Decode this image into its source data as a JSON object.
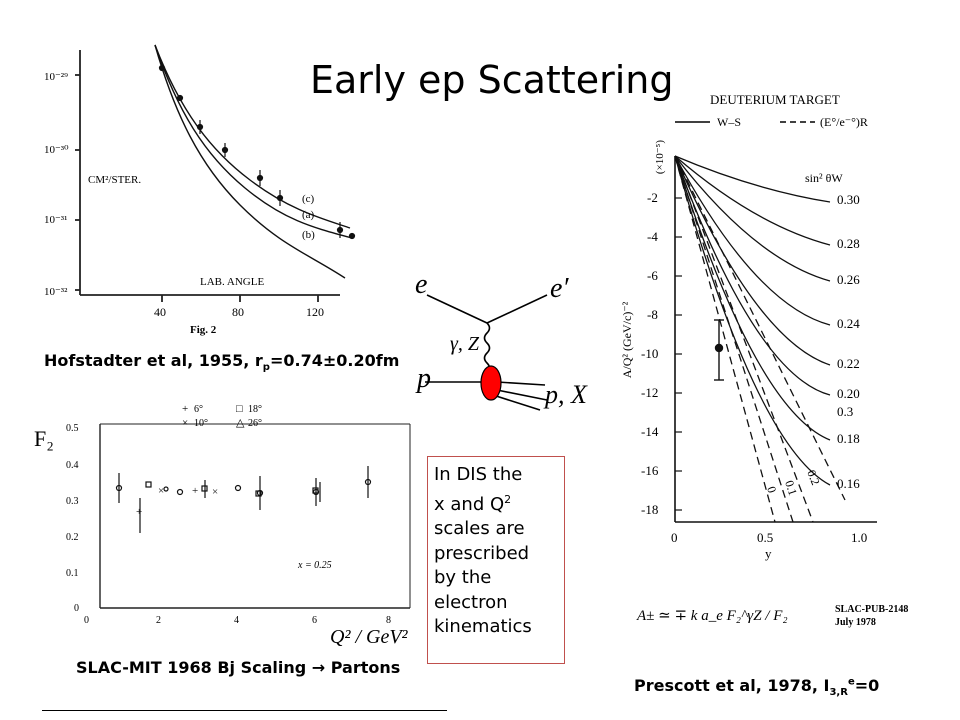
{
  "slide": {
    "title": "Early ep Scattering"
  },
  "hofstadter": {
    "y_ticks": [
      "10⁻²⁹",
      "10⁻³⁰",
      "10⁻³¹",
      "10⁻³²"
    ],
    "x_ticks": [
      "40",
      "80",
      "120"
    ],
    "y_label": "CM²/STER.",
    "x_label": "LAB. ANGLE",
    "curve_labels": [
      "(c)",
      "(a)",
      "(b)"
    ],
    "fig_label": "Fig. 2",
    "caption_prefix": "Hofstadter et al, 1955, r",
    "caption_sub": "p",
    "caption_suffix": "=0.74±0.20fm"
  },
  "feynman": {
    "e_in": "e",
    "e_out": "e′",
    "boson": "γ, Z",
    "p_in": "p",
    "p_out": "p, X"
  },
  "slac_mit": {
    "y_label": "F₂",
    "y_ticks": [
      "0.5",
      "0.4",
      "0.3",
      "0.2",
      "0.1",
      "0"
    ],
    "x_ticks": [
      "0",
      "2",
      "4",
      "6",
      "8"
    ],
    "legend": [
      {
        "symbol": "+",
        "label": "6°"
      },
      {
        "symbol": "□",
        "label": "18°"
      },
      {
        "symbol": "×",
        "label": "10°"
      },
      {
        "symbol": "△",
        "label": "26°"
      }
    ],
    "x_note": "x = 0.25",
    "x_axis_label": "Q² / GeV²",
    "caption": "SLAC-MIT 1968  Bj Scaling → Partons"
  },
  "dis_note": {
    "line1": "In DIS the",
    "line2a": "x and Q",
    "line2b": "2",
    "line3": "scales are",
    "line4": "prescribed",
    "line5": "by the",
    "line6": "electron",
    "line7": "kinematics"
  },
  "prescott": {
    "header": "DEUTERIUM TARGET",
    "legend_ws": "W–S",
    "legend_eo": "(E°/e⁻°)R",
    "exp_label": "(×10⁻⁵)",
    "y_axis_label": "A/Q² (GeV/c)⁻²",
    "y_ticks": [
      "-2",
      "-4",
      "-6",
      "-8",
      "-10",
      "-12",
      "-14",
      "-16",
      "-18"
    ],
    "x_ticks": [
      "0",
      "0.5",
      "1.0"
    ],
    "x_axis_label": "y",
    "sin_label": "sin² θW",
    "curve_values": [
      "0.30",
      "0.28",
      "0.26",
      "0.24",
      "0.22",
      "0.20",
      "0.3",
      "0.18",
      "0.16"
    ],
    "dash_labels": [
      "0",
      "0.1",
      "0.2"
    ],
    "formula": "A± ≃ ∓ k a_e F₂^γZ / F₂",
    "ref1": "SLAC-PUB-2148",
    "ref2": "July 1978",
    "caption_prefix": "Prescott et al, 1978, I",
    "caption_sub": "3,R",
    "caption_sup": "e",
    "caption_suffix": "=0"
  },
  "colors": {
    "proton_blob": "#ff0000",
    "box_border": "#c0504d"
  }
}
